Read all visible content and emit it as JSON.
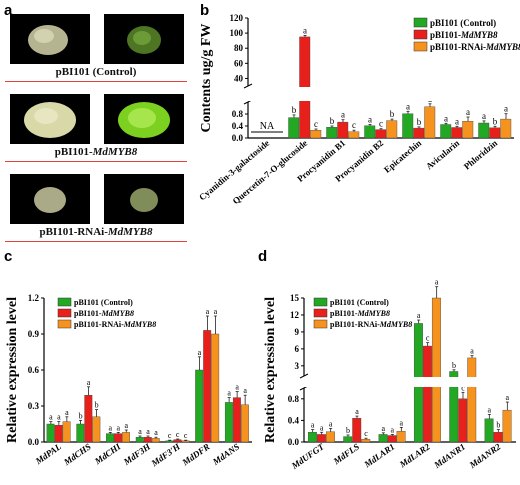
{
  "panel_a": {
    "letter": "a",
    "groups": [
      {
        "label": "pBI101 (Control)",
        "label_em": "",
        "label_suffix": ""
      },
      {
        "label": "pBI101-",
        "label_em": "MdMYB8",
        "label_suffix": ""
      },
      {
        "label": "pBI101-RNAi-",
        "label_em": "MdMYB8",
        "label_suffix": ""
      }
    ]
  },
  "chart_data": [
    {
      "id": "b",
      "type": "bar",
      "ylabel": "Contents ug/g FW",
      "categories": [
        "Cyanidin-3-galactoside",
        "Quercetin-7-O-glucoside",
        "Procyanidin B1",
        "Procyanidin B2",
        "Epicatechin",
        "Avicularin",
        "Phloridzin"
      ],
      "series": [
        {
          "name": "pBI101 (Control)",
          "color": "#22a822",
          "values": [
            null,
            0.68,
            0.36,
            0.41,
            0.81,
            0.45,
            0.5
          ]
        },
        {
          "name": "pBI101-MdMYB8",
          "color": "#e8201c",
          "values": [
            null,
            95,
            0.53,
            0.28,
            0.33,
            0.35,
            0.34
          ]
        },
        {
          "name": "pBI101-RNAi-MdMYB8",
          "color": "#f6921e",
          "values": [
            null,
            0.26,
            0.21,
            0.58,
            1.04,
            0.56,
            0.63
          ]
        }
      ],
      "errors": [
        [
          null,
          0.09,
          0.04,
          0.04,
          0.08,
          0.04,
          0.07
        ],
        [
          null,
          2,
          0.08,
          0.03,
          0.04,
          0.04,
          0.05
        ],
        [
          null,
          0.04,
          0.05,
          0.05,
          0.1,
          0.14,
          0.18
        ]
      ],
      "letters": [
        [
          null,
          "b",
          "b",
          "a",
          "a",
          "a",
          "a"
        ],
        [
          null,
          "a",
          "a",
          "c",
          "b",
          "a",
          "b"
        ],
        [
          null,
          "c",
          "c",
          "b",
          "a",
          "a",
          "a"
        ]
      ],
      "na_label": "NA",
      "y_ticks_lower": [
        "0.0",
        "0.4",
        "0.8"
      ],
      "y_ticks_upper": [
        "40",
        "60",
        "80",
        "100",
        "120"
      ],
      "ylim_lower": [
        0,
        1.2
      ],
      "ylim_upper": [
        30,
        120
      ],
      "broken_axis": true
    },
    {
      "id": "c",
      "type": "bar",
      "ylabel": "Relative expression level",
      "categories": [
        "MdPAL",
        "MdCHS",
        "MdCHI",
        "MdF3H",
        "MdF3'H",
        "MdDFR",
        "MdANS"
      ],
      "series": [
        {
          "name": "pBI101 (Control)",
          "color": "#22a822",
          "values": [
            0.15,
            0.15,
            0.07,
            0.04,
            0.01,
            0.6,
            0.33
          ]
        },
        {
          "name": "pBI101-MdMYB8",
          "color": "#e8201c",
          "values": [
            0.14,
            0.39,
            0.07,
            0.04,
            0.02,
            0.93,
            0.37
          ]
        },
        {
          "name": "pBI101-RNAi-MdMYB8",
          "color": "#f6921e",
          "values": [
            0.17,
            0.21,
            0.08,
            0.03,
            0.01,
            0.9,
            0.31
          ]
        }
      ],
      "errors": [
        [
          0.02,
          0.03,
          0.01,
          0.01,
          0.005,
          0.11,
          0.04
        ],
        [
          0.03,
          0.07,
          0.01,
          0.01,
          0.005,
          0.12,
          0.05
        ],
        [
          0.04,
          0.06,
          0.02,
          0.01,
          0.005,
          0.15,
          0.08
        ]
      ],
      "letters": [
        [
          "a",
          "b",
          "a",
          "a",
          "c",
          "a",
          "a"
        ],
        [
          "a",
          "a",
          "a",
          "a",
          "c",
          "a",
          "a"
        ],
        [
          "a",
          "b",
          "a",
          "a",
          "c",
          "a",
          "a"
        ]
      ],
      "y_ticks": [
        "0.0",
        "0.3",
        "0.6",
        "0.9",
        "1.2"
      ],
      "ylim": [
        0,
        1.2
      ]
    },
    {
      "id": "d",
      "type": "bar",
      "ylabel": "Relative expression level",
      "categories": [
        "MdUFGT",
        "MdFLS",
        "MdLAR1",
        "MdLAR2",
        "MdANR1",
        "MdANR2"
      ],
      "series": [
        {
          "name": "pBI101 (Control)",
          "color": "#22a822",
          "values": [
            0.18,
            0.1,
            0.14,
            10.5,
            2.0,
            0.43
          ]
        },
        {
          "name": "pBI101-MdMYB8",
          "color": "#e8201c",
          "values": [
            0.14,
            0.44,
            0.12,
            6.5,
            0.8,
            0.18
          ]
        },
        {
          "name": "pBI101-RNAi-MdMYB8",
          "color": "#f6921e",
          "values": [
            0.19,
            0.05,
            0.2,
            15,
            4.4,
            0.59
          ]
        }
      ],
      "errors": [
        [
          0.05,
          0.03,
          0.03,
          0.6,
          0.3,
          0.08
        ],
        [
          0.04,
          0.04,
          0.02,
          0.6,
          0.12,
          0.05
        ],
        [
          0.06,
          0.02,
          0.07,
          2.0,
          0.4,
          0.15
        ]
      ],
      "letters": [
        [
          "a",
          "b",
          "a",
          "a",
          "b",
          "a"
        ],
        [
          "a",
          "a",
          "a",
          "c",
          "c",
          "b"
        ],
        [
          "a",
          "c",
          "a",
          "a",
          "a",
          "a"
        ]
      ],
      "y_ticks_lower": [
        "0.0",
        "0.4",
        "0.8"
      ],
      "y_ticks_upper": [
        "3",
        "6",
        "9",
        "12",
        "15"
      ],
      "ylim_lower": [
        0,
        1.0
      ],
      "ylim_upper": [
        1.2,
        15
      ],
      "broken_axis": true
    }
  ]
}
